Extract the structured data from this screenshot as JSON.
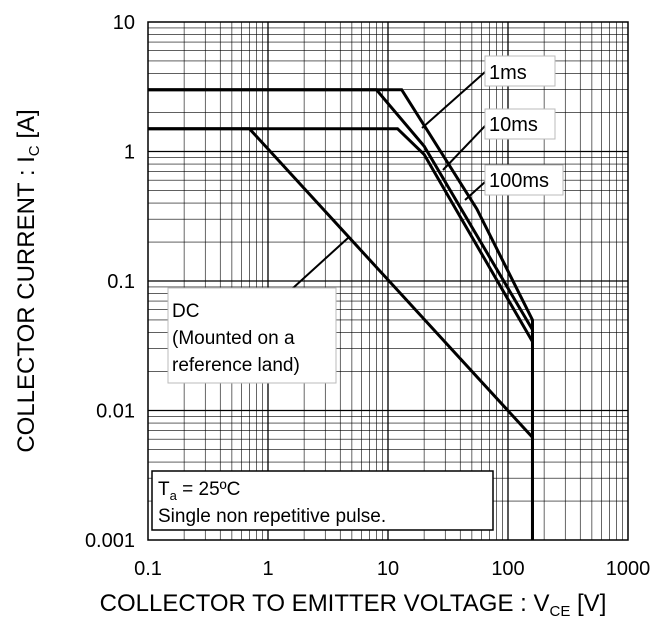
{
  "chart_data": {
    "type": "line",
    "xscale": "log",
    "yscale": "log",
    "xlim": [
      0.1,
      1000
    ],
    "ylim": [
      0.001,
      10
    ],
    "grid": true,
    "x_ticks": [
      "0.1",
      "1",
      "10",
      "100",
      "1000"
    ],
    "y_ticks": [
      "10",
      "1",
      "0.1",
      "0.01",
      "0.001"
    ],
    "xlabel": {
      "main": "COLLECTOR TO EMITTER VOLTAGE : V",
      "sub": "CE",
      "unit": " [V]"
    },
    "ylabel": {
      "main": "COLLECTOR CURRENT : I",
      "sub": "C",
      "unit": " [A]"
    },
    "series": [
      {
        "name": "1ms",
        "points": [
          [
            0.1,
            3
          ],
          [
            13,
            3
          ],
          [
            55,
            0.36
          ],
          [
            160,
            0.05
          ],
          [
            160,
            0.001
          ]
        ]
      },
      {
        "name": "10ms",
        "points": [
          [
            0.1,
            3
          ],
          [
            8,
            3
          ],
          [
            20,
            1.1
          ],
          [
            160,
            0.042
          ],
          [
            160,
            0.001
          ]
        ]
      },
      {
        "name": "100ms",
        "points": [
          [
            0.1,
            1.5
          ],
          [
            12,
            1.5
          ],
          [
            20,
            0.95
          ],
          [
            160,
            0.034
          ],
          [
            160,
            0.001
          ]
        ]
      },
      {
        "name": "DC",
        "points": [
          [
            0.1,
            1.5
          ],
          [
            0.7,
            1.5
          ],
          [
            160,
            0.0062
          ],
          [
            160,
            0.001
          ]
        ]
      }
    ],
    "annotations": {
      "ms1": "1ms",
      "ms10": "10ms",
      "ms100": "100ms",
      "dc": [
        "DC",
        "(Mounted on a",
        "reference land)"
      ],
      "conditions": {
        "ta_main": "T",
        "ta_sub": "a",
        "ta_value": " = 25ºC",
        "pulse": "Single non repetitive pulse."
      }
    }
  }
}
